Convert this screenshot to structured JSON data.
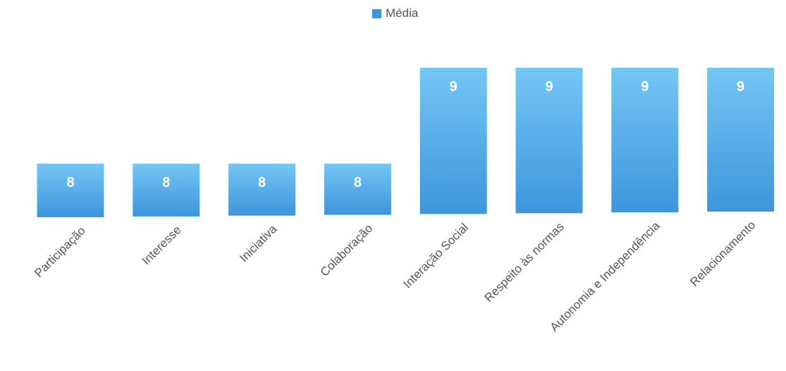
{
  "chart_data": {
    "type": "bar",
    "categories": [
      "Participação",
      "Interesse",
      "Iniciativa",
      "Colaboração",
      "Interação Social",
      "Respeito às normas",
      "Autonomia e Independência",
      "Relacionamento"
    ],
    "series": [
      {
        "name": "Média",
        "values": [
          8,
          8,
          8,
          8,
          9,
          9,
          9,
          9
        ]
      }
    ],
    "data_labels": [
      "8",
      "8",
      "8",
      "8",
      "9",
      "9",
      "9",
      "9"
    ],
    "legend_position": "top-center",
    "grid": false,
    "colors": {
      "bar_top": "#74c6f4",
      "bar_bottom": "#3d96dc",
      "label": "#ffffff",
      "text": "#555555"
    }
  }
}
